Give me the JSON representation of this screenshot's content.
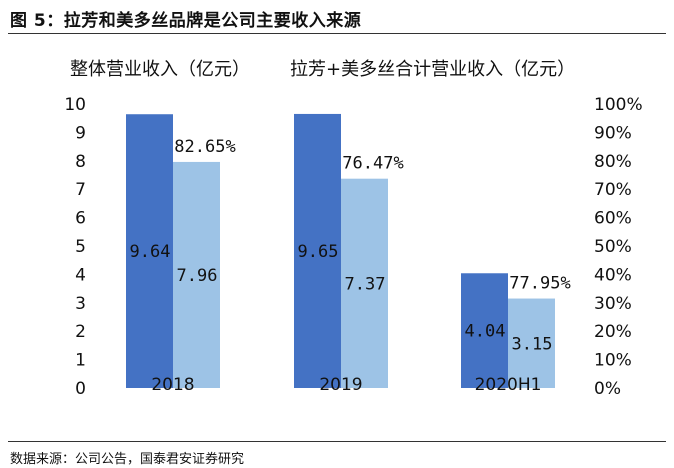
{
  "figure": {
    "title": "图 5：拉芳和美多丝品牌是公司主要收入来源",
    "source": "数据来源：公司公告，国泰君安证券研究"
  },
  "chart_data": {
    "type": "bar",
    "categories": [
      "2018",
      "2019",
      "2020H1"
    ],
    "series": [
      {
        "name": "整体营业收入（亿元）",
        "values": [
          9.64,
          9.65,
          4.04
        ],
        "color": "#4472C4",
        "labels": [
          "9.64",
          "9.65",
          "4.04"
        ]
      },
      {
        "name": "拉芳+美多丝合计营业收入（亿元）",
        "values": [
          7.96,
          7.37,
          3.15
        ],
        "color": "#9DC3E6",
        "labels": [
          "7.96",
          "7.37",
          "3.15"
        ]
      }
    ],
    "share_labels": [
      "82.65%",
      "76.47%",
      "77.95%"
    ],
    "ylim": [
      0,
      10
    ],
    "y_ticks": [
      "0",
      "1",
      "2",
      "3",
      "4",
      "5",
      "6",
      "7",
      "8",
      "9",
      "10"
    ],
    "y2lim": [
      0,
      1
    ],
    "y2_ticks": [
      "0%",
      "10%",
      "20%",
      "30%",
      "40%",
      "50%",
      "60%",
      "70%",
      "80%",
      "90%",
      "100%"
    ],
    "legend_position": "top",
    "grid": false
  }
}
